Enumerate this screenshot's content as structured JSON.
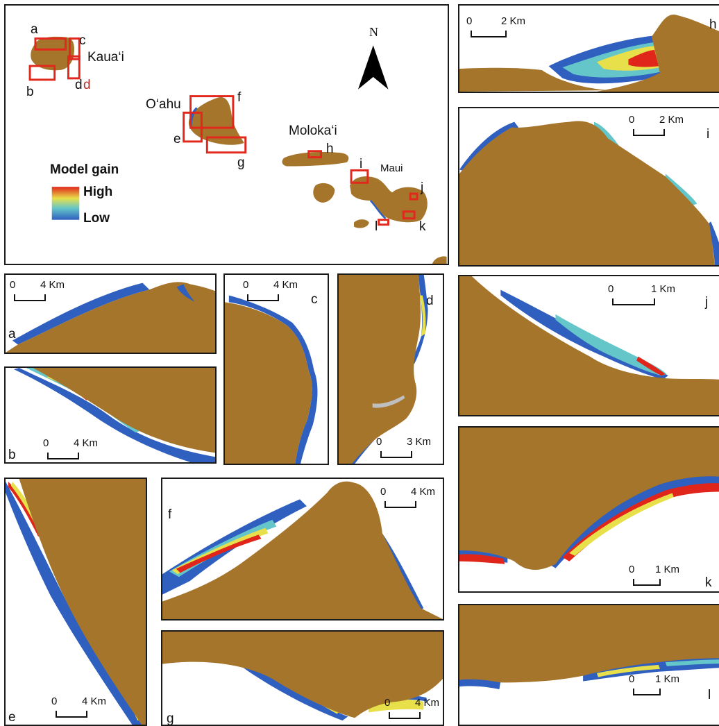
{
  "overview": {
    "islands": [
      "Kaua‘i",
      "O‘ahu",
      "Moloka‘i",
      "Maui"
    ],
    "box_labels": {
      "a": "a",
      "b": "b",
      "c": "c",
      "d": "d",
      "d_extra": "d",
      "e": "e",
      "f": "f",
      "g": "g",
      "h": "h",
      "i": "i",
      "j": "j",
      "k": "k",
      "l": "l"
    },
    "north": "N",
    "legend": {
      "title": "Model gain",
      "high": "High",
      "low": "Low"
    }
  },
  "panels": {
    "a": {
      "label": "a",
      "scale_zero": "0",
      "scale_unit": "4 Km"
    },
    "b": {
      "label": "b",
      "scale_zero": "0",
      "scale_unit": "4 Km"
    },
    "c": {
      "label": "c",
      "scale_zero": "0",
      "scale_unit": "4 Km"
    },
    "d": {
      "label": "d",
      "scale_zero": "0",
      "scale_unit": "3 Km"
    },
    "e": {
      "label": "e",
      "scale_zero": "0",
      "scale_unit": "4 Km"
    },
    "f": {
      "label": "f",
      "scale_zero": "0",
      "scale_unit": "4 Km"
    },
    "g": {
      "label": "g",
      "scale_zero": "0",
      "scale_unit": "4 Km"
    },
    "h": {
      "label": "h",
      "scale_zero": "0",
      "scale_unit": "2 Km"
    },
    "i": {
      "label": "i",
      "scale_zero": "0",
      "scale_unit": "2 Km"
    },
    "j": {
      "label": "j",
      "scale_zero": "0",
      "scale_unit": "1 Km"
    },
    "k": {
      "label": "k",
      "scale_zero": "0",
      "scale_unit": "1 Km"
    },
    "l": {
      "label": "l",
      "scale_zero": "0",
      "scale_unit": "1 Km"
    }
  },
  "colors": {
    "land": "#a5752b",
    "low": "#2f5fbf",
    "mid": "#64c6c9",
    "midhigh": "#e8e04a",
    "high": "#e0261b",
    "box": "#e2281c",
    "extra_d": "#b0312a"
  }
}
